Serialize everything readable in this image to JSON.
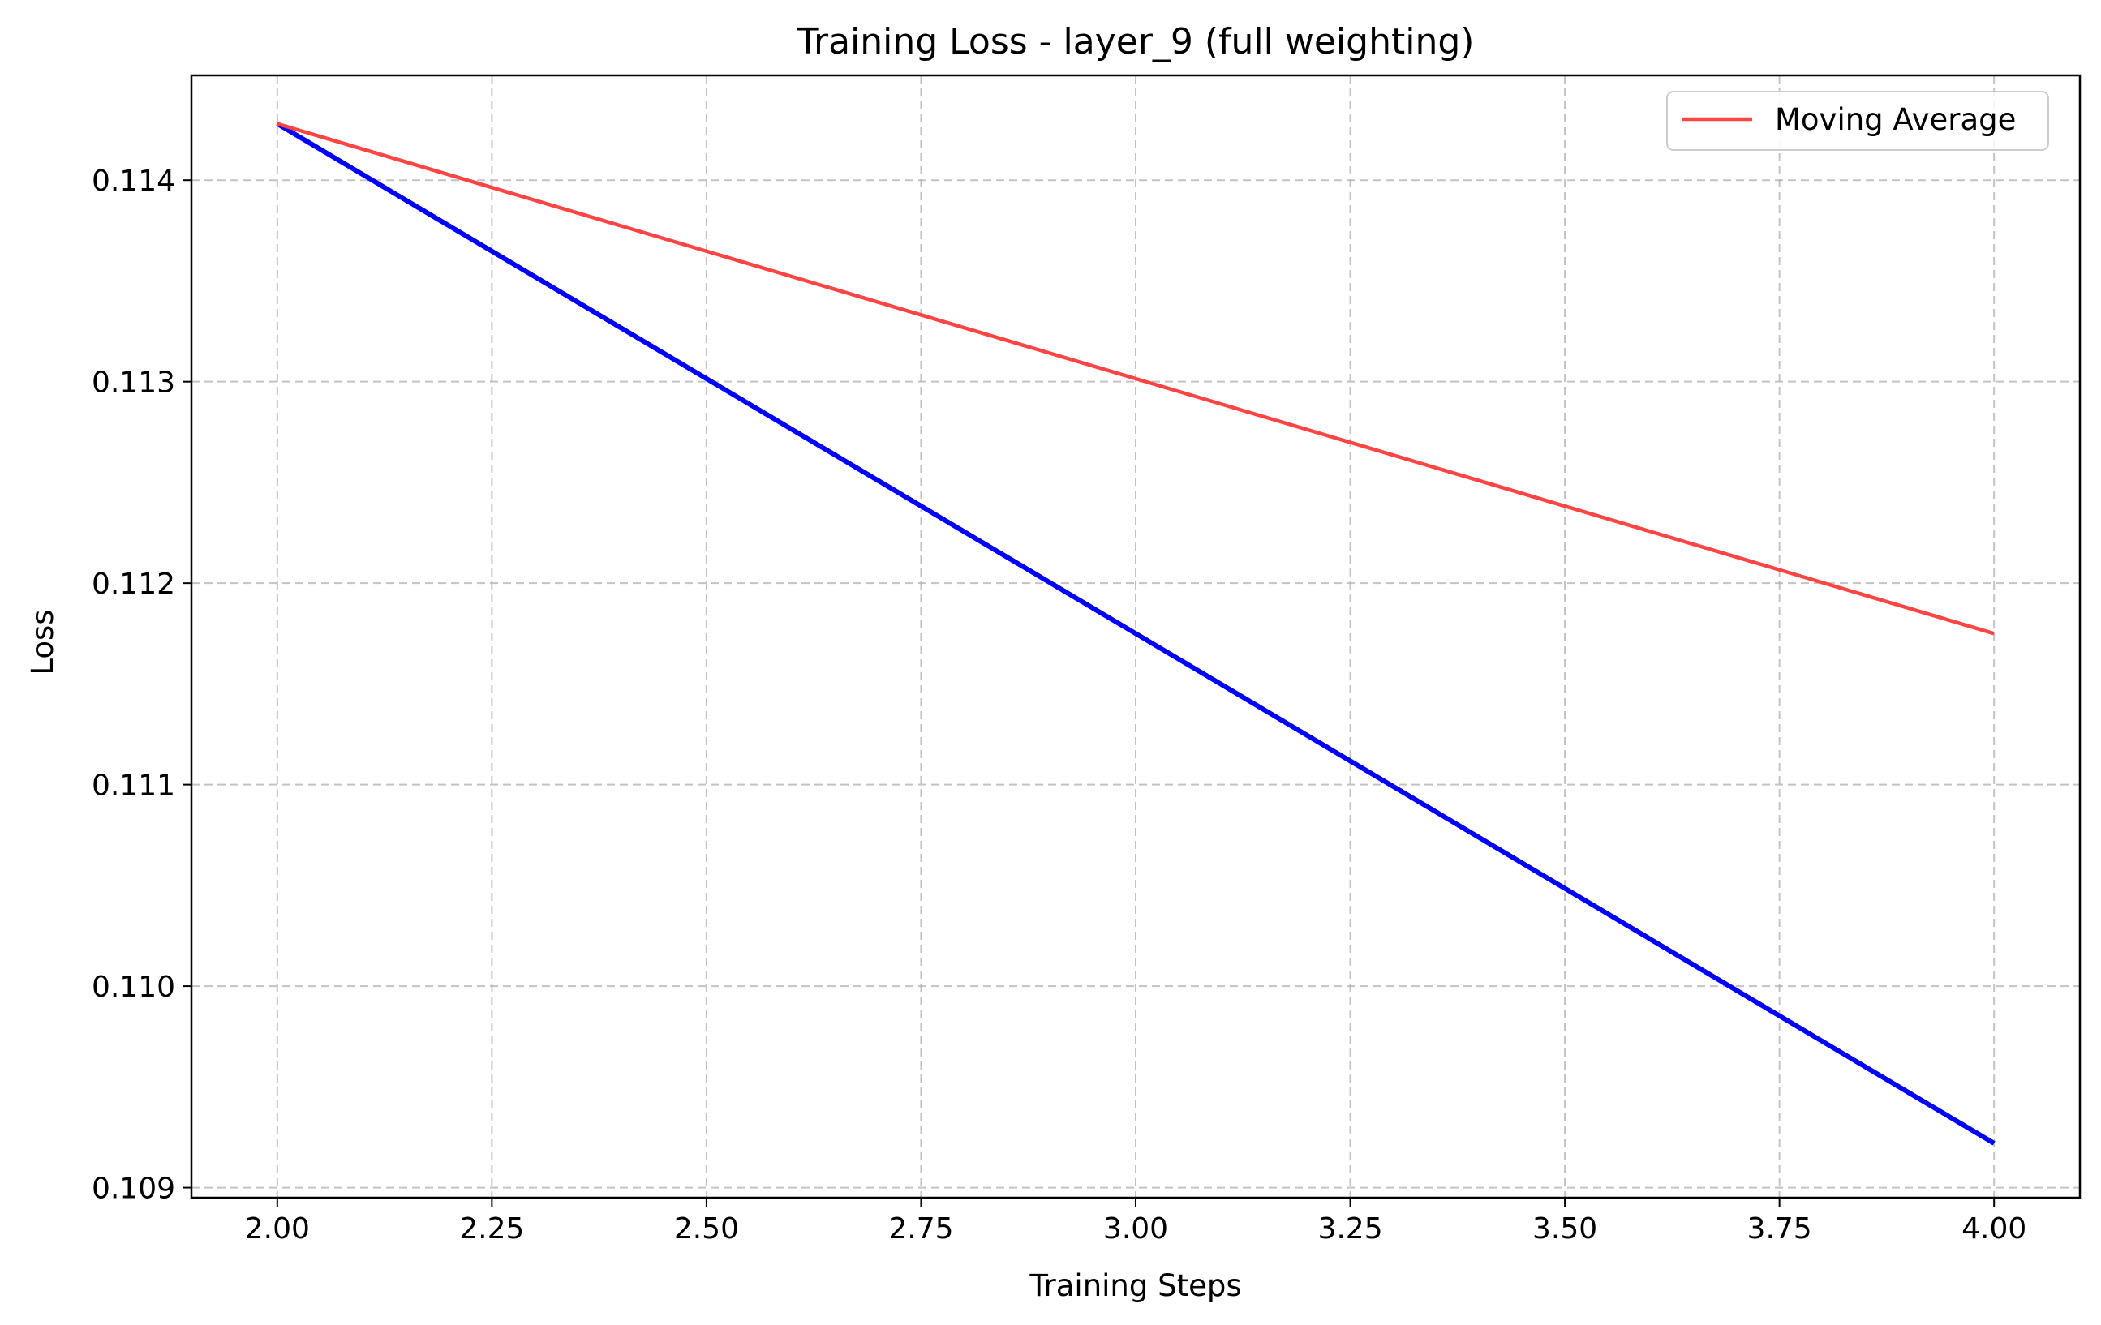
{
  "chart_data": {
    "type": "line",
    "title": "Training Loss - layer_9 (full weighting)",
    "xlabel": "Training Steps",
    "ylabel": "Loss",
    "xlim": [
      1.9,
      4.1
    ],
    "ylim": [
      0.10895,
      0.11452
    ],
    "xticks": [
      2.0,
      2.25,
      2.5,
      2.75,
      3.0,
      3.25,
      3.5,
      3.75,
      4.0
    ],
    "xtick_labels": [
      "2.00",
      "2.25",
      "2.50",
      "2.75",
      "3.00",
      "3.25",
      "3.50",
      "3.75",
      "4.00"
    ],
    "yticks": [
      0.109,
      0.11,
      0.111,
      0.112,
      0.113,
      0.114
    ],
    "ytick_labels": [
      "0.109",
      "0.110",
      "0.111",
      "0.112",
      "0.113",
      "0.114"
    ],
    "grid": true,
    "legend_position": "top-right",
    "series": [
      {
        "color": "#0000ff",
        "x": [
          2,
          4
        ],
        "y": [
          0.11428,
          0.10922
        ],
        "in_legend": false
      },
      {
        "name": "Moving Average",
        "color": "#ff4444",
        "x": [
          2,
          4
        ],
        "y": [
          0.11428,
          0.11175
        ],
        "in_legend": true
      }
    ]
  }
}
